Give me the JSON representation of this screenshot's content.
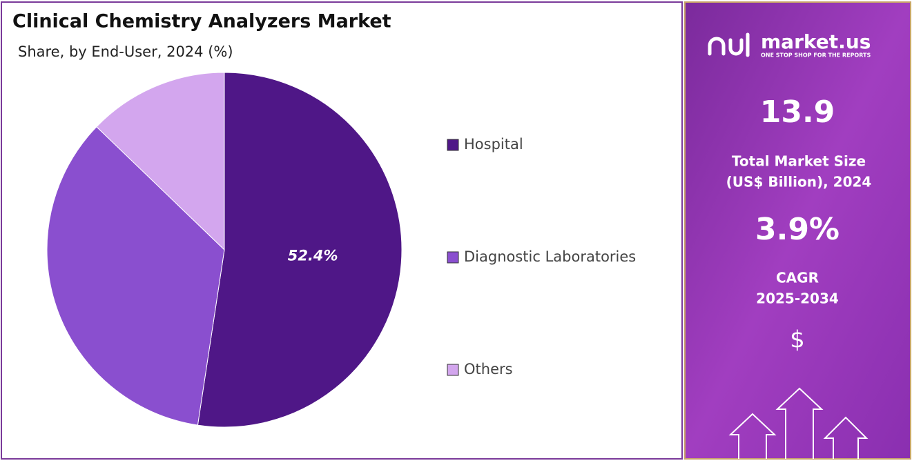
{
  "chart_data": {
    "type": "pie",
    "title": "Clinical Chemistry Analyzers Market",
    "subtitle": "Share, by End-User, 2024 (%)",
    "categories": [
      "Hospital",
      "Diagnostic Laboratories",
      "Others"
    ],
    "values": [
      52.4,
      34.8,
      12.8
    ],
    "value_labels": [
      "52.4%",
      null,
      null
    ],
    "colors": [
      "#4f1787",
      "#8a4fcf",
      "#d3a6ee"
    ]
  },
  "panel": {
    "brand": "market.us",
    "tagline": "ONE STOP SHOP FOR THE REPORTS",
    "market_size": "13.9",
    "market_size_label_1": "Total Market Size",
    "market_size_label_2": "(US$ Billion), 2024",
    "cagr": "3.9%",
    "cagr_label_1": "CAGR",
    "cagr_label_2": "2025-2034",
    "currency": "$"
  }
}
